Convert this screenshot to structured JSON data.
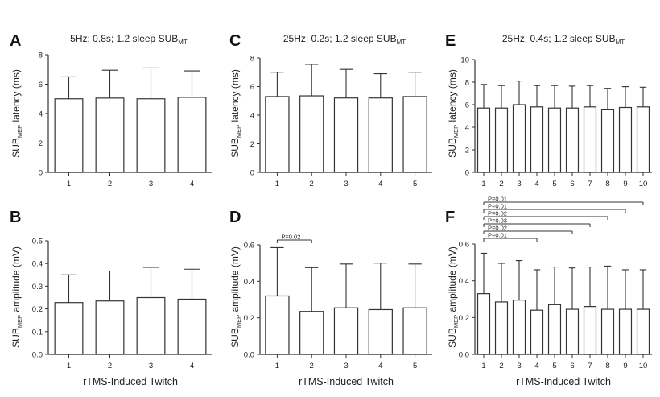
{
  "figure": {
    "xlabel": "rTMS-Induced Twitch"
  },
  "chart_data": [
    {
      "panel": "A",
      "type": "bar",
      "title": "5Hz; 0.8s; 1.2 sleep SUB",
      "title_sub": "MT",
      "ylabel": "SUB",
      "ylabel_sub": "MEP",
      "ylabel_rest": " latency (ms)",
      "categories": [
        "1",
        "2",
        "3",
        "4"
      ],
      "values": [
        5.0,
        5.05,
        5.0,
        5.1
      ],
      "errors": [
        1.5,
        1.9,
        2.1,
        1.8
      ],
      "ylim": [
        0,
        8
      ],
      "yticks": [
        "0",
        "2",
        "4",
        "6",
        "8"
      ],
      "xlabel": "",
      "sig": []
    },
    {
      "panel": "C",
      "type": "bar",
      "title": "25Hz; 0.2s; 1.2 sleep SUB",
      "title_sub": "MT",
      "ylabel": "SUB",
      "ylabel_sub": "MEP",
      "ylabel_rest": " latency (ms)",
      "categories": [
        "1",
        "2",
        "3",
        "4",
        "5"
      ],
      "values": [
        5.3,
        5.35,
        5.2,
        5.2,
        5.3
      ],
      "errors": [
        1.7,
        2.2,
        2.0,
        1.7,
        1.7
      ],
      "ylim": [
        0,
        8
      ],
      "yticks": [
        "0",
        "2",
        "4",
        "6",
        "8"
      ],
      "xlabel": "",
      "sig": []
    },
    {
      "panel": "E",
      "type": "bar",
      "title": "25Hz; 0.4s; 1.2 sleep SUB",
      "title_sub": "MT",
      "ylabel": "SUB",
      "ylabel_sub": "MEP",
      "ylabel_rest": " latency (ms)",
      "categories": [
        "1",
        "2",
        "3",
        "4",
        "5",
        "6",
        "7",
        "8",
        "9",
        "10"
      ],
      "values": [
        5.7,
        5.7,
        6.0,
        5.8,
        5.7,
        5.7,
        5.8,
        5.6,
        5.75,
        5.8
      ],
      "errors": [
        2.1,
        2.0,
        2.1,
        1.9,
        2.0,
        1.95,
        1.9,
        1.85,
        1.85,
        1.75
      ],
      "ylim": [
        0,
        10
      ],
      "yticks": [
        "0",
        "2",
        "4",
        "6",
        "8",
        "10"
      ],
      "xlabel": "",
      "sig": []
    },
    {
      "panel": "B",
      "type": "bar",
      "title": "",
      "title_sub": "",
      "ylabel": "SUB",
      "ylabel_sub": "MEP",
      "ylabel_rest": " amplitude (mV)",
      "categories": [
        "1",
        "2",
        "3",
        "4"
      ],
      "values": [
        0.228,
        0.235,
        0.25,
        0.243
      ],
      "errors": [
        0.122,
        0.132,
        0.133,
        0.132
      ],
      "ylim": [
        0,
        0.5
      ],
      "yticks": [
        "0.0",
        "0.1",
        "0.2",
        "0.3",
        "0.4",
        "0.5"
      ],
      "xlabel": "rTMS-Induced Twitch",
      "sig": []
    },
    {
      "panel": "D",
      "type": "bar",
      "title": "",
      "title_sub": "",
      "ylabel": "SUB",
      "ylabel_sub": "MEP",
      "ylabel_rest": " amplitude (mV)",
      "categories": [
        "1",
        "2",
        "3",
        "4",
        "5"
      ],
      "values": [
        0.32,
        0.235,
        0.255,
        0.245,
        0.255
      ],
      "errors": [
        0.265,
        0.24,
        0.24,
        0.255,
        0.24
      ],
      "ylim": [
        0,
        0.6
      ],
      "yticks": [
        "0.0",
        "0.2",
        "0.4",
        "0.6"
      ],
      "xlabel": "rTMS-Induced Twitch",
      "sig": [
        {
          "from": "1",
          "to": "2",
          "label": "P=0.02"
        }
      ]
    },
    {
      "panel": "F",
      "type": "bar",
      "title": "",
      "title_sub": "",
      "ylabel": "SUB",
      "ylabel_sub": "MEP",
      "ylabel_rest": " amplitude (mV)",
      "categories": [
        "1",
        "2",
        "3",
        "4",
        "5",
        "6",
        "7",
        "8",
        "9",
        "10"
      ],
      "values": [
        0.33,
        0.285,
        0.295,
        0.24,
        0.27,
        0.245,
        0.26,
        0.245,
        0.245,
        0.245
      ],
      "errors": [
        0.22,
        0.21,
        0.215,
        0.22,
        0.205,
        0.225,
        0.215,
        0.235,
        0.215,
        0.215
      ],
      "ylim": [
        0,
        0.6
      ],
      "yticks": [
        "0.0",
        "0.2",
        "0.4",
        "0.6"
      ],
      "xlabel": "rTMS-Induced Twitch",
      "sig": [
        {
          "from": "1",
          "to": "10",
          "label": "P=0.01"
        },
        {
          "from": "1",
          "to": "9",
          "label": "P=0.01"
        },
        {
          "from": "1",
          "to": "8",
          "label": "P=0.02"
        },
        {
          "from": "1",
          "to": "7",
          "label": "P=0.03"
        },
        {
          "from": "1",
          "to": "6",
          "label": "P=0.02"
        },
        {
          "from": "1",
          "to": "4",
          "label": "P=0.01"
        }
      ]
    }
  ]
}
